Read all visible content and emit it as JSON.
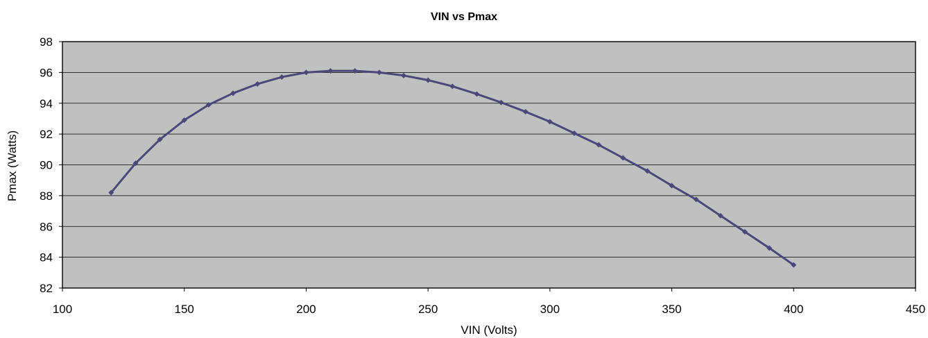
{
  "colors": {
    "plot_background": "#c0c0c0",
    "series_line": "#4b4778",
    "gridline": "#000000"
  },
  "chart_data": {
    "type": "line",
    "title": "VIN vs Pmax",
    "xlabel": "VIN (Volts)",
    "ylabel": "Pmax (Watts)",
    "xlim": [
      100,
      450
    ],
    "ylim": [
      82,
      98
    ],
    "xticks": [
      100,
      150,
      200,
      250,
      300,
      350,
      400,
      450
    ],
    "yticks": [
      82,
      84,
      86,
      88,
      90,
      92,
      94,
      96,
      98
    ],
    "grid": "horizontal",
    "legend": "none",
    "series": [
      {
        "marker": "diamond",
        "x": [
          120,
          130,
          140,
          150,
          160,
          170,
          180,
          190,
          200,
          210,
          220,
          230,
          240,
          250,
          260,
          270,
          280,
          290,
          300,
          310,
          320,
          330,
          340,
          350,
          360,
          370,
          380,
          390,
          400
        ],
        "y": [
          88.2,
          90.1,
          91.65,
          92.9,
          93.9,
          94.65,
          95.25,
          95.7,
          96.0,
          96.1,
          96.1,
          96.0,
          95.8,
          95.5,
          95.1,
          94.6,
          94.05,
          93.45,
          92.8,
          92.05,
          91.3,
          90.45,
          89.6,
          88.65,
          87.75,
          86.7,
          85.65,
          84.6,
          83.5
        ]
      }
    ]
  }
}
